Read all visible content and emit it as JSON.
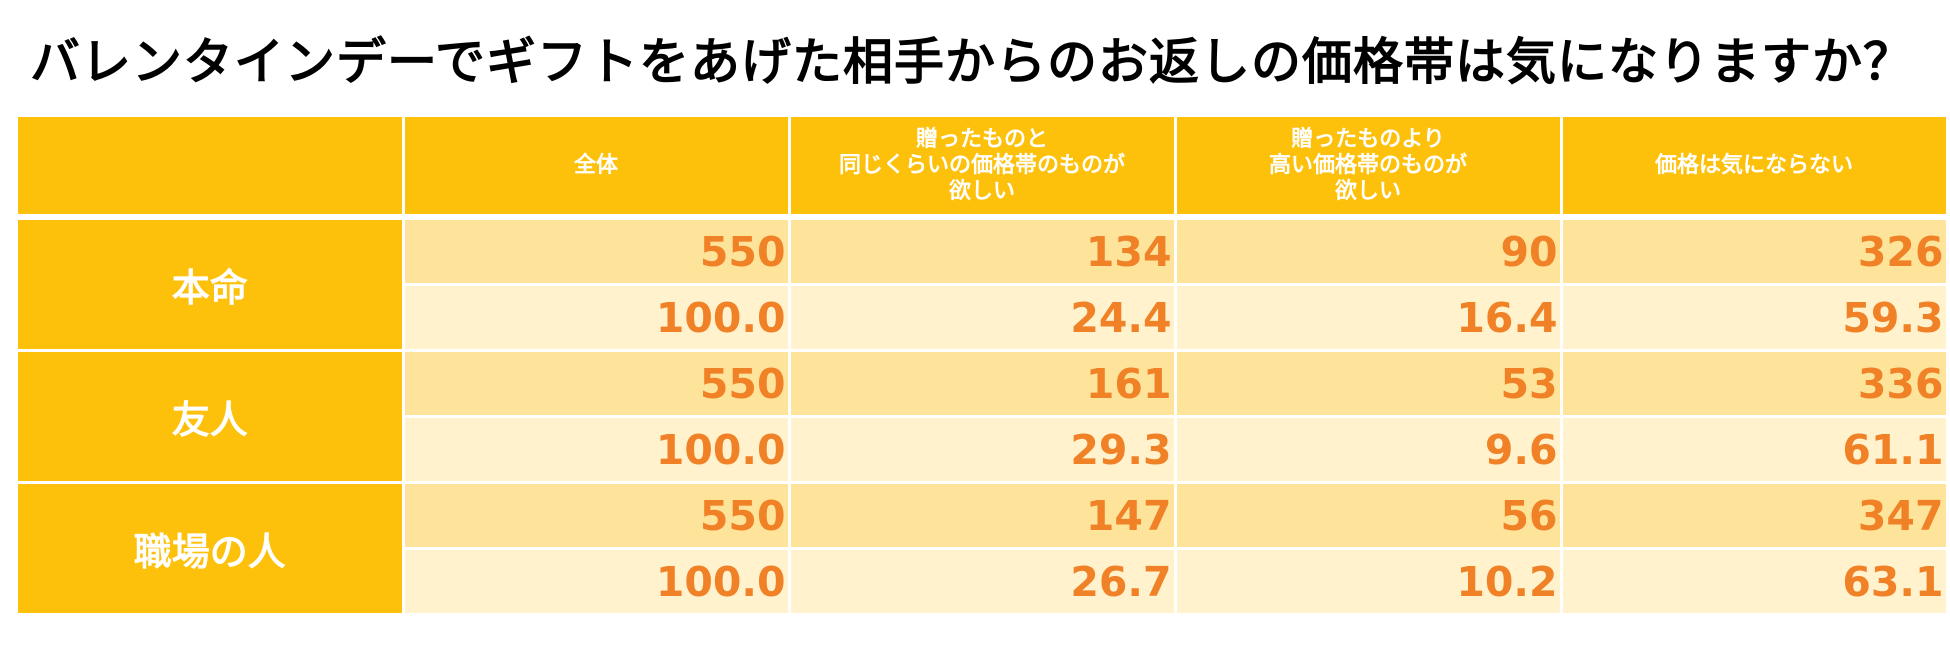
{
  "chart_data": {
    "type": "table",
    "title": "バレンタインデーでギフトをあげた相手からのお返しの価格帯は気になりますか？",
    "columns": [
      "",
      "全体",
      "贈ったものと\n同じくらいの価格帯のものが\n欲しい",
      "贈ったものより\n高い価格帯のものが\n欲しい",
      "価格は気にならない"
    ],
    "groups": [
      {
        "label": "本命",
        "counts": [
          "550",
          "134",
          "90",
          "326"
        ],
        "percents": [
          "100.0",
          "24.4",
          "16.4",
          "59.3"
        ]
      },
      {
        "label": "友人",
        "counts": [
          "550",
          "161",
          "53",
          "336"
        ],
        "percents": [
          "100.0",
          "29.3",
          "9.6",
          "61.1"
        ]
      },
      {
        "label": "職場の人",
        "counts": [
          "550",
          "147",
          "56",
          "347"
        ],
        "percents": [
          "100.0",
          "26.7",
          "10.2",
          "63.1"
        ]
      }
    ]
  },
  "colors": {
    "header_bg": "#fdc00b",
    "count_row_bg": "#fee49a",
    "percent_row_bg": "#fff2cd",
    "value_text": "#f08127",
    "header_text": "#ffffff"
  }
}
